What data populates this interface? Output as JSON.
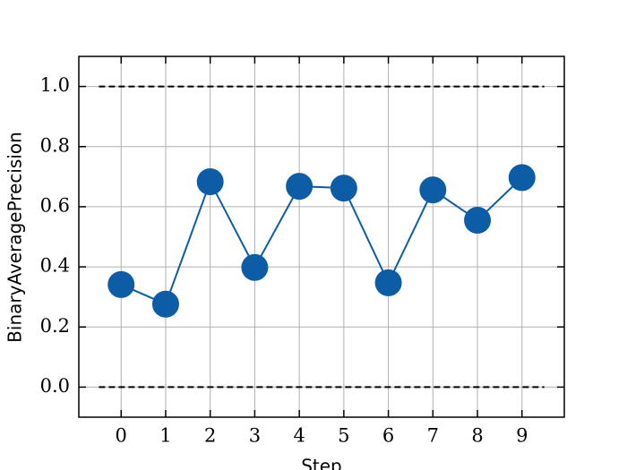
{
  "chart_data": {
    "type": "line",
    "xlabel": "Step",
    "ylabel": "BinaryAveragePrecision",
    "x": [
      0,
      1,
      2,
      3,
      4,
      5,
      6,
      7,
      8,
      9
    ],
    "series": [
      {
        "color": "#0C5DA5",
        "values": [
          0.341,
          0.276,
          0.683,
          0.398,
          0.668,
          0.662,
          0.347,
          0.656,
          0.555,
          0.697
        ]
      }
    ],
    "reference_lines": [
      {
        "y": 0,
        "xmin": -0.5,
        "xmax": 9.5
      },
      {
        "y": 1,
        "xmin": -0.5,
        "xmax": 9.5
      }
    ],
    "xlim": [
      -0.95,
      9.95
    ],
    "ylim": [
      -0.1,
      1.1
    ],
    "xticks": [
      0,
      1,
      2,
      3,
      4,
      5,
      6,
      7,
      8,
      9
    ],
    "yticks": [
      {
        "value": 0,
        "label": "0.0"
      },
      {
        "value": 0.2,
        "label": "0.2"
      },
      {
        "value": 0.4,
        "label": "0.4"
      },
      {
        "value": 0.6,
        "label": "0.6"
      },
      {
        "value": 0.8,
        "label": "0.8"
      },
      {
        "value": 1,
        "label": "1.0"
      }
    ],
    "grid": true
  }
}
